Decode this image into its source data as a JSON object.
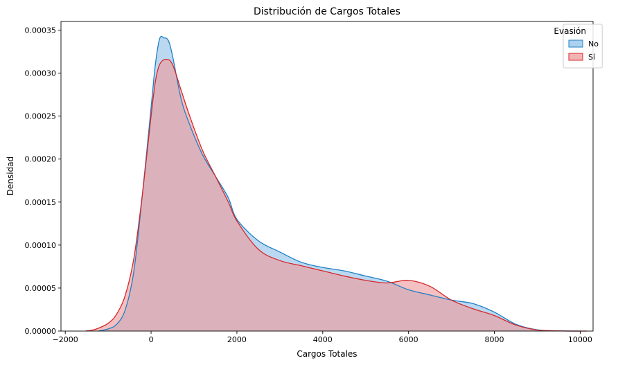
{
  "chart_data": {
    "type": "area",
    "title": "Distribución de Cargos Totales",
    "xlabel": "Cargos Totales",
    "ylabel": "Densidad",
    "xlim": [
      -2100,
      10300
    ],
    "ylim": [
      0,
      0.00036
    ],
    "xticks": [
      -2000,
      0,
      2000,
      4000,
      6000,
      8000,
      10000
    ],
    "xtick_labels": [
      "−2000",
      "0",
      "2000",
      "4000",
      "6000",
      "8000",
      "10000"
    ],
    "yticks": [
      0,
      5e-05,
      0.0001,
      0.00015,
      0.0002,
      0.00025,
      0.0003,
      0.00035
    ],
    "ytick_labels": [
      "0.00000",
      "0.00005",
      "0.00010",
      "0.00015",
      "0.00020",
      "0.00025",
      "0.00030",
      "0.00035"
    ],
    "grid": false,
    "legend": {
      "title": "Evasión",
      "placement": "top-right"
    },
    "series": [
      {
        "name": "No",
        "line_color": "#1f7fc4",
        "fill_color": "#8fc2e8",
        "points": [
          [
            -1230,
            0.0
          ],
          [
            -1000,
            2.5e-06
          ],
          [
            -800,
            8e-06
          ],
          [
            -600,
            2.5e-05
          ],
          [
            -400,
            7e-05
          ],
          [
            -200,
            0.00016
          ],
          [
            0,
            0.00026
          ],
          [
            100,
            0.00031
          ],
          [
            200,
            0.00034
          ],
          [
            300,
            0.000341
          ],
          [
            400,
            0.000338
          ],
          [
            500,
            0.00032
          ],
          [
            700,
            0.00027
          ],
          [
            900,
            0.00024
          ],
          [
            1200,
            0.000205
          ],
          [
            1500,
            0.00018
          ],
          [
            1800,
            0.000155
          ],
          [
            2000,
            0.00013
          ],
          [
            2500,
            0.000105
          ],
          [
            3000,
            9.2e-05
          ],
          [
            3500,
            8e-05
          ],
          [
            4000,
            7.4e-05
          ],
          [
            4500,
            7e-05
          ],
          [
            5000,
            6.4e-05
          ],
          [
            5500,
            5.8e-05
          ],
          [
            6000,
            4.8e-05
          ],
          [
            6500,
            4.2e-05
          ],
          [
            7000,
            3.6e-05
          ],
          [
            7500,
            3.2e-05
          ],
          [
            8000,
            2.2e-05
          ],
          [
            8500,
            8e-06
          ],
          [
            9000,
            1.5e-06
          ],
          [
            9500,
            2e-07
          ],
          [
            10000,
            0.0
          ]
        ]
      },
      {
        "name": "Sí",
        "line_color": "#d62728",
        "fill_color": "#ef9a9b",
        "points": [
          [
            -1520,
            0.0
          ],
          [
            -1300,
            2e-06
          ],
          [
            -1000,
            9e-06
          ],
          [
            -800,
            2e-05
          ],
          [
            -600,
            4.2e-05
          ],
          [
            -400,
            8.5e-05
          ],
          [
            -200,
            0.00016
          ],
          [
            0,
            0.00025
          ],
          [
            100,
            0.00029
          ],
          [
            200,
            0.00031
          ],
          [
            350,
            0.000316
          ],
          [
            500,
            0.00031
          ],
          [
            700,
            0.00028
          ],
          [
            900,
            0.00025
          ],
          [
            1200,
            0.00021
          ],
          [
            1500,
            0.00018
          ],
          [
            1800,
            0.00015
          ],
          [
            2000,
            0.000128
          ],
          [
            2500,
            9.5e-05
          ],
          [
            3000,
            8.2e-05
          ],
          [
            3500,
            7.6e-05
          ],
          [
            4000,
            7e-05
          ],
          [
            4500,
            6.4e-05
          ],
          [
            5000,
            5.9e-05
          ],
          [
            5500,
            5.6e-05
          ],
          [
            6000,
            5.9e-05
          ],
          [
            6500,
            5.2e-05
          ],
          [
            7000,
            3.6e-05
          ],
          [
            7500,
            2.6e-05
          ],
          [
            8000,
            1.8e-05
          ],
          [
            8500,
            7e-06
          ],
          [
            9000,
            1.2e-06
          ],
          [
            9500,
            2e-07
          ],
          [
            10150,
            0.0
          ]
        ]
      }
    ]
  }
}
